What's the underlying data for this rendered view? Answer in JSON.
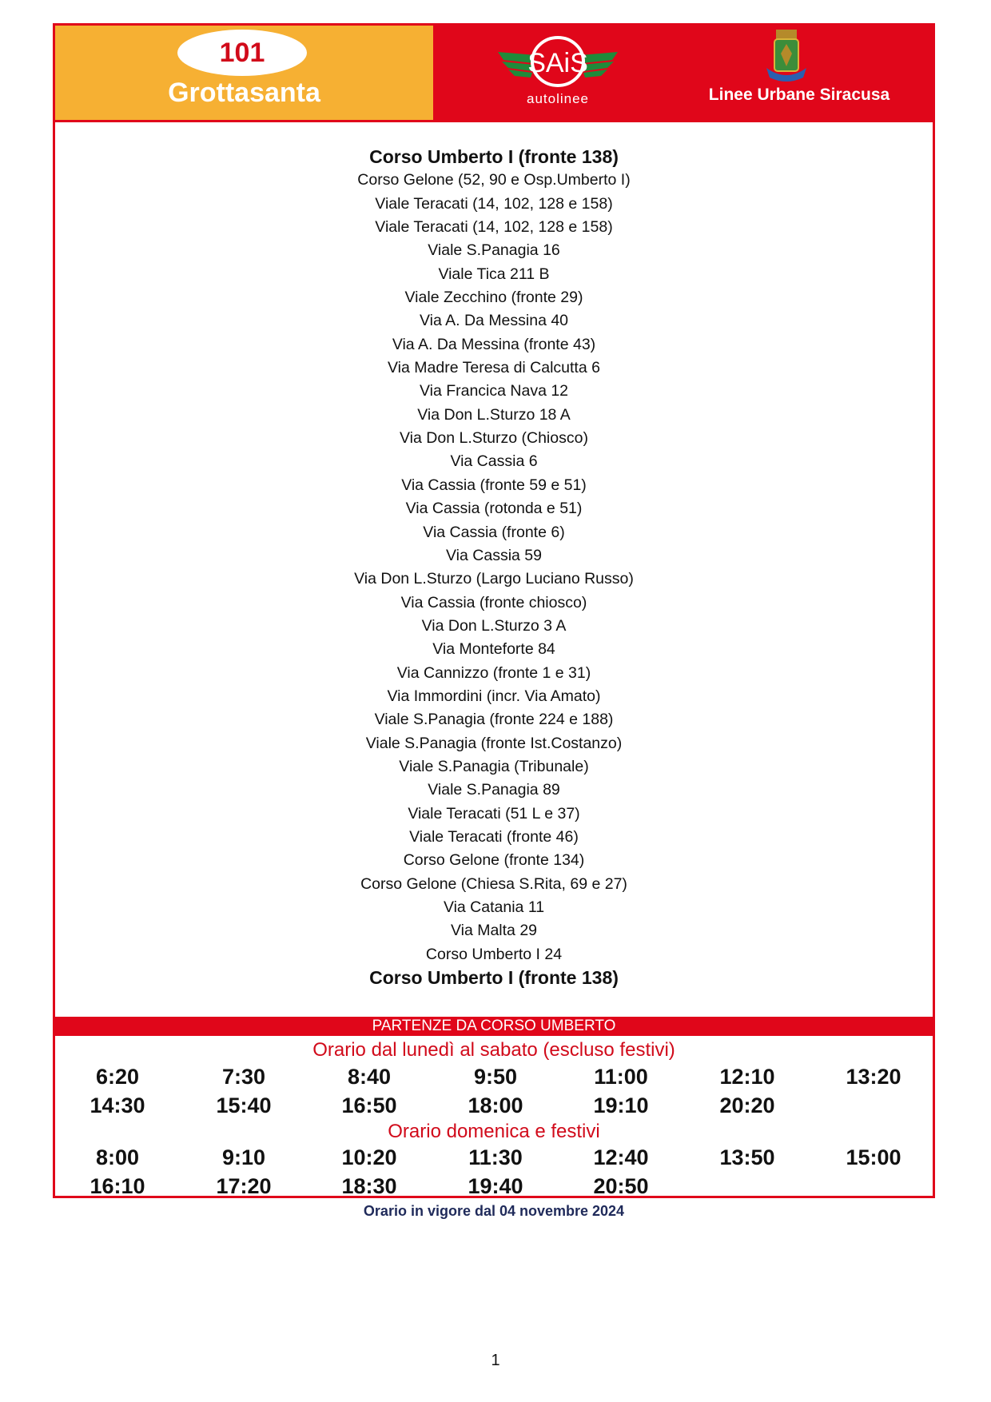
{
  "header": {
    "route_number": "101",
    "route_name": "Grottasanta",
    "logo_text": "autolinee",
    "logo_brand": "SAIS",
    "city_label": "Linee Urbane Siracusa"
  },
  "stops": [
    "Corso Umberto I (fronte 138)",
    "Corso Gelone (52, 90 e Osp.Umberto I)",
    "Viale Teracati (14, 102, 128 e 158)",
    "Viale Teracati (14, 102, 128 e 158)",
    "Viale S.Panagia 16",
    "Viale Tica 211 B",
    "Viale Zecchino (fronte 29)",
    "Via A. Da Messina 40",
    "Via A. Da Messina (fronte 43)",
    "Via Madre Teresa di Calcutta 6",
    "Via Francica Nava 12",
    "Via Don L.Sturzo 18 A",
    "Via Don L.Sturzo (Chiosco)",
    "Via Cassia 6",
    "Via Cassia (fronte 59 e 51)",
    "Via Cassia (rotonda e 51)",
    "Via Cassia (fronte 6)",
    "Via Cassia 59",
    "Via Don L.Sturzo (Largo Luciano Russo)",
    "Via Cassia (fronte chiosco)",
    "Via Don L.Sturzo 3 A",
    "Via Monteforte 84",
    "Via Cannizzo (fronte 1 e 31)",
    "Via Immordini (incr. Via Amato)",
    "Viale S.Panagia (fronte 224 e 188)",
    "Viale S.Panagia (fronte Ist.Costanzo)",
    "Viale S.Panagia (Tribunale)",
    "Viale S.Panagia 89",
    "Viale Teracati (51 L e 37)",
    "Viale Teracati (fronte 46)",
    "Corso Gelone (fronte 134)",
    "Corso Gelone (Chiesa S.Rita, 69 e 27)",
    "Via Catania 11",
    "Via Malta 29",
    "Corso Umberto I 24",
    "Corso Umberto I (fronte 138)"
  ],
  "departures_band": "PARTENZE DA CORSO UMBERTO",
  "weekday": {
    "title": "Orario dal lunedì al sabato (escluso festivi)",
    "rows": [
      [
        "6:20",
        "7:30",
        "8:40",
        "9:50",
        "11:00",
        "12:10",
        "13:20"
      ],
      [
        "14:30",
        "15:40",
        "16:50",
        "18:00",
        "19:10",
        "20:20"
      ]
    ]
  },
  "sunday": {
    "title": "Orario domenica e festivi",
    "rows": [
      [
        "8:00",
        "9:10",
        "10:20",
        "11:30",
        "12:40",
        "13:50",
        "15:00"
      ],
      [
        "16:10",
        "17:20",
        "18:30",
        "19:40",
        "20:50"
      ]
    ]
  },
  "footer": "Orario in vigore dal 04 novembre 2024",
  "page_number": "1",
  "colors": {
    "red": "#e0061a",
    "orange": "#f6b033",
    "footer_text": "#1f2a5a"
  }
}
